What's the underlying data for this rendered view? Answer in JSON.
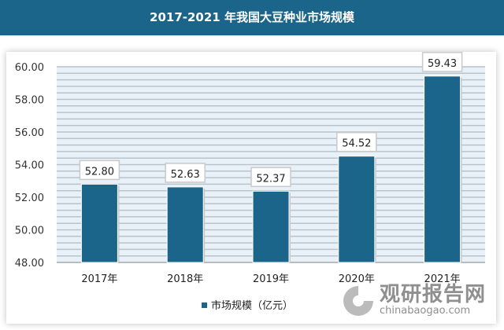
{
  "header": {
    "title": "2017-2021 年我国大豆种业市场规模"
  },
  "chart_data": {
    "type": "bar",
    "title": "2017-2021 年我国大豆种业市场规模",
    "categories": [
      "2017年",
      "2018年",
      "2019年",
      "2020年",
      "2021年"
    ],
    "series": [
      {
        "name": "市场规模（亿元）",
        "values": [
          52.8,
          52.63,
          52.37,
          54.52,
          59.43
        ],
        "color": "#1a6589"
      }
    ],
    "data_labels": [
      "52.80",
      "52.63",
      "52.37",
      "54.52",
      "59.43"
    ],
    "yticks": [
      "48.00",
      "50.00",
      "52.00",
      "54.00",
      "56.00",
      "58.00",
      "60.00"
    ],
    "ylim": [
      48,
      60
    ],
    "grid": true,
    "legend": "bottom-left",
    "xlabel": "",
    "ylabel": ""
  },
  "watermark": {
    "cn": "观研报告网",
    "en": "chinabaogao.com"
  }
}
